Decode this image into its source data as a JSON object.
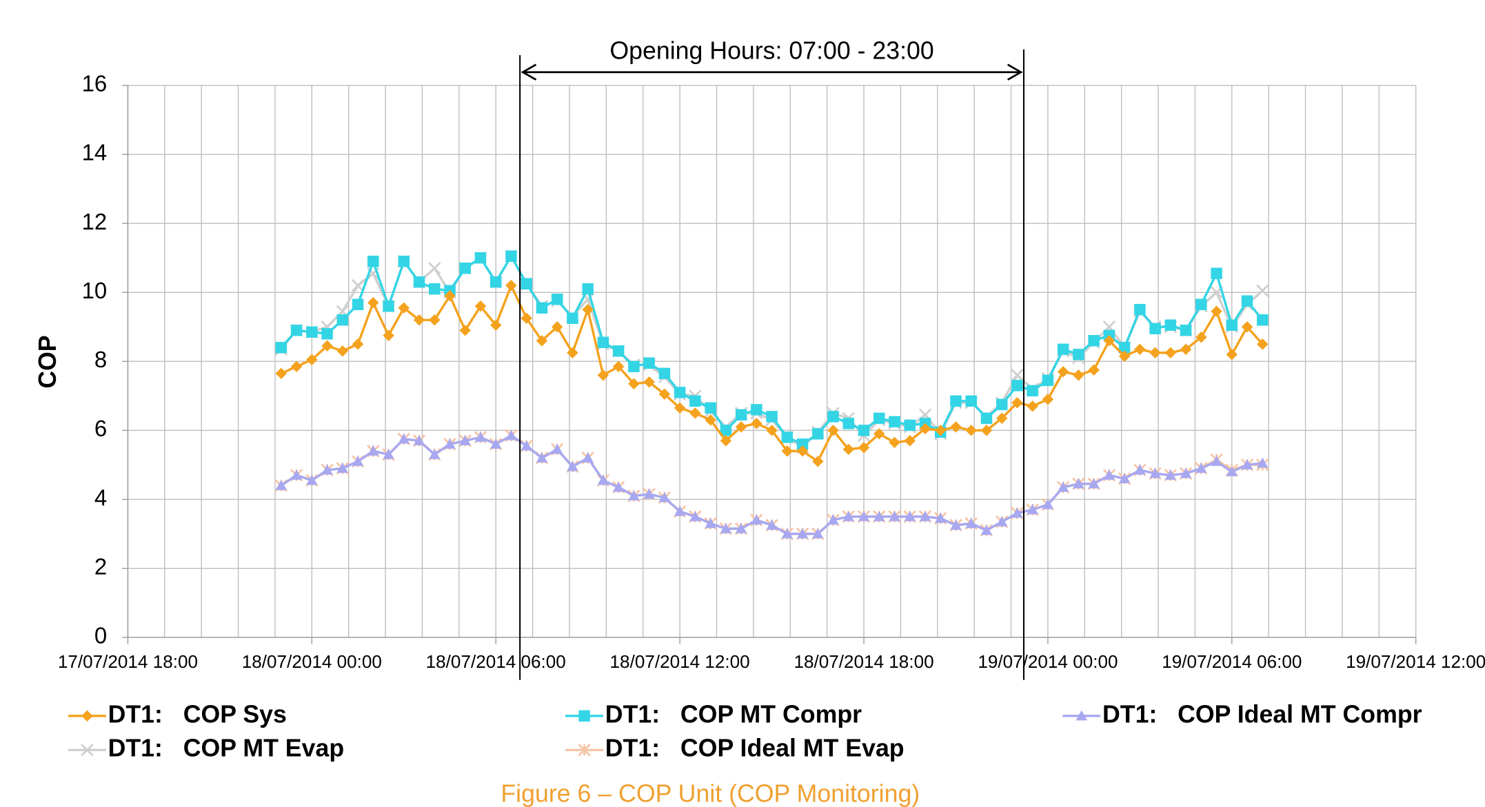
{
  "chart_data": {
    "type": "line",
    "annotation": "Opening Hours: 07:00 - 23:00",
    "ylabel": "COP",
    "caption": "Figure 6 – COP Unit (COP Monitoring)",
    "xlim": [
      "17/07/2014 18:00",
      "19/07/2014 12:00"
    ],
    "xticks": [
      "17/07/2014 18:00",
      "18/07/2014 00:00",
      "18/07/2014 06:00",
      "18/07/2014 12:00",
      "18/07/2014 18:00",
      "19/07/2014 00:00",
      "19/07/2014 06:00",
      "19/07/2014 12:00"
    ],
    "ylim": [
      0,
      16
    ],
    "yticks": [
      0,
      2,
      4,
      6,
      8,
      10,
      12,
      14,
      16
    ],
    "grid": true,
    "legend": "bottom",
    "x": [
      "17/07/2014 23:00",
      "17/07/2014 23:30",
      "18/07/2014 00:00",
      "18/07/2014 00:30",
      "18/07/2014 01:00",
      "18/07/2014 01:30",
      "18/07/2014 02:00",
      "18/07/2014 02:30",
      "18/07/2014 03:00",
      "18/07/2014 03:30",
      "18/07/2014 04:00",
      "18/07/2014 04:30",
      "18/07/2014 05:00",
      "18/07/2014 05:30",
      "18/07/2014 06:00",
      "18/07/2014 06:30",
      "18/07/2014 07:00",
      "18/07/2014 07:30",
      "18/07/2014 08:00",
      "18/07/2014 08:30",
      "18/07/2014 09:00",
      "18/07/2014 09:30",
      "18/07/2014 10:00",
      "18/07/2014 10:30",
      "18/07/2014 11:00",
      "18/07/2014 11:30",
      "18/07/2014 12:00",
      "18/07/2014 12:30",
      "18/07/2014 13:00",
      "18/07/2014 13:30",
      "18/07/2014 14:00",
      "18/07/2014 14:30",
      "18/07/2014 15:00",
      "18/07/2014 15:30",
      "18/07/2014 16:00",
      "18/07/2014 16:30",
      "18/07/2014 17:00",
      "18/07/2014 17:30",
      "18/07/2014 18:00",
      "18/07/2014 18:30",
      "18/07/2014 19:00",
      "18/07/2014 19:30",
      "18/07/2014 20:00",
      "18/07/2014 20:30",
      "18/07/2014 21:00",
      "18/07/2014 21:30",
      "18/07/2014 22:00",
      "18/07/2014 22:30",
      "18/07/2014 23:00",
      "18/07/2014 23:30",
      "19/07/2014 00:00",
      "19/07/2014 00:30",
      "19/07/2014 01:00",
      "19/07/2014 01:30",
      "19/07/2014 02:00",
      "19/07/2014 02:30",
      "19/07/2014 03:00",
      "19/07/2014 03:30",
      "19/07/2014 04:00",
      "19/07/2014 04:30",
      "19/07/2014 05:00",
      "19/07/2014 05:30",
      "19/07/2014 06:00",
      "19/07/2014 06:30",
      "19/07/2014 07:00"
    ],
    "series": [
      {
        "name": "DT1:   COP Sys",
        "color": "#f4a21e",
        "marker": "diamond",
        "values": [
          7.65,
          7.85,
          8.05,
          8.45,
          8.3,
          8.5,
          9.7,
          8.75,
          9.55,
          9.2,
          9.2,
          9.9,
          8.9,
          9.6,
          9.05,
          10.2,
          9.25,
          8.6,
          9.0,
          8.25,
          9.5,
          7.6,
          7.85,
          7.35,
          7.4,
          7.05,
          6.65,
          6.5,
          6.3,
          5.7,
          6.1,
          6.2,
          6.0,
          5.4,
          5.4,
          5.1,
          6.0,
          5.45,
          5.5,
          5.9,
          5.65,
          5.7,
          6.05,
          6.0,
          6.1,
          6.0,
          6.0,
          6.35,
          6.8,
          6.7,
          6.9,
          7.7,
          7.6,
          7.75,
          8.6,
          8.15,
          8.35,
          8.25,
          8.25,
          8.35,
          8.7,
          9.45,
          8.2,
          9.0,
          8.5
        ]
      },
      {
        "name": "DT1:   COP MT Compr",
        "color": "#33d5e5",
        "marker": "square",
        "values": [
          8.4,
          8.9,
          8.85,
          8.8,
          9.2,
          9.65,
          10.9,
          9.6,
          10.9,
          10.3,
          10.1,
          10.05,
          10.7,
          11.0,
          10.3,
          11.05,
          10.25,
          9.55,
          9.8,
          9.25,
          10.1,
          8.55,
          8.3,
          7.85,
          7.95,
          7.65,
          7.1,
          6.85,
          6.65,
          6.0,
          6.45,
          6.6,
          6.4,
          5.8,
          5.6,
          5.9,
          6.4,
          6.2,
          6.0,
          6.35,
          6.25,
          6.15,
          6.2,
          5.95,
          6.85,
          6.85,
          6.35,
          6.75,
          7.3,
          7.15,
          7.45,
          8.35,
          8.2,
          8.6,
          8.75,
          8.4,
          9.5,
          8.95,
          9.05,
          8.9,
          9.65,
          10.55,
          9.05,
          9.75,
          9.2
        ]
      },
      {
        "name": "DT1:   COP Ideal MT Compr",
        "color": "#a8a8f0",
        "marker": "triangle",
        "values": [
          4.4,
          4.7,
          4.55,
          4.85,
          4.9,
          5.1,
          5.4,
          5.3,
          5.75,
          5.7,
          5.3,
          5.6,
          5.7,
          5.8,
          5.6,
          5.85,
          5.55,
          5.2,
          5.45,
          4.95,
          5.2,
          4.55,
          4.35,
          4.1,
          4.15,
          4.05,
          3.65,
          3.5,
          3.3,
          3.15,
          3.15,
          3.4,
          3.25,
          3.0,
          3.0,
          3.0,
          3.4,
          3.5,
          3.5,
          3.5,
          3.5,
          3.5,
          3.5,
          3.45,
          3.25,
          3.3,
          3.1,
          3.35,
          3.6,
          3.7,
          3.85,
          4.35,
          4.45,
          4.45,
          4.7,
          4.6,
          4.85,
          4.75,
          4.7,
          4.75,
          4.9,
          5.1,
          4.8,
          5.0,
          5.05
        ]
      },
      {
        "name": "DT1:   COP MT Evap",
        "color": "#cfcfcf",
        "marker": "x",
        "values": [
          8.35,
          8.9,
          8.85,
          9.0,
          9.45,
          10.2,
          10.55,
          9.6,
          10.9,
          10.3,
          10.7,
          10.0,
          10.7,
          11.0,
          10.3,
          11.05,
          10.25,
          9.6,
          9.75,
          9.3,
          9.8,
          8.5,
          8.3,
          7.9,
          7.9,
          7.55,
          7.05,
          7.0,
          6.55,
          6.1,
          6.5,
          6.5,
          6.3,
          5.8,
          5.5,
          5.95,
          6.5,
          6.35,
          5.85,
          6.3,
          6.2,
          6.1,
          6.45,
          5.9,
          6.8,
          6.8,
          6.4,
          6.8,
          7.6,
          7.2,
          7.5,
          8.3,
          8.1,
          8.55,
          9.0,
          8.4,
          9.45,
          9.0,
          9.0,
          8.9,
          9.6,
          10.0,
          9.0,
          9.65,
          10.05
        ]
      },
      {
        "name": "DT1:   COP Ideal MT Evap",
        "color": "#f6c4a6",
        "marker": "star",
        "values": [
          4.4,
          4.7,
          4.55,
          4.85,
          4.9,
          5.1,
          5.4,
          5.3,
          5.75,
          5.7,
          5.3,
          5.6,
          5.7,
          5.8,
          5.6,
          5.85,
          5.55,
          5.2,
          5.45,
          4.95,
          5.2,
          4.55,
          4.35,
          4.1,
          4.15,
          4.05,
          3.65,
          3.5,
          3.3,
          3.15,
          3.15,
          3.4,
          3.25,
          3.0,
          3.0,
          3.0,
          3.4,
          3.5,
          3.5,
          3.5,
          3.5,
          3.5,
          3.5,
          3.45,
          3.25,
          3.3,
          3.1,
          3.35,
          3.6,
          3.7,
          3.85,
          4.35,
          4.45,
          4.45,
          4.7,
          4.6,
          4.85,
          4.75,
          4.7,
          4.75,
          4.9,
          5.15,
          4.85,
          5.0,
          5.0
        ]
      }
    ]
  }
}
